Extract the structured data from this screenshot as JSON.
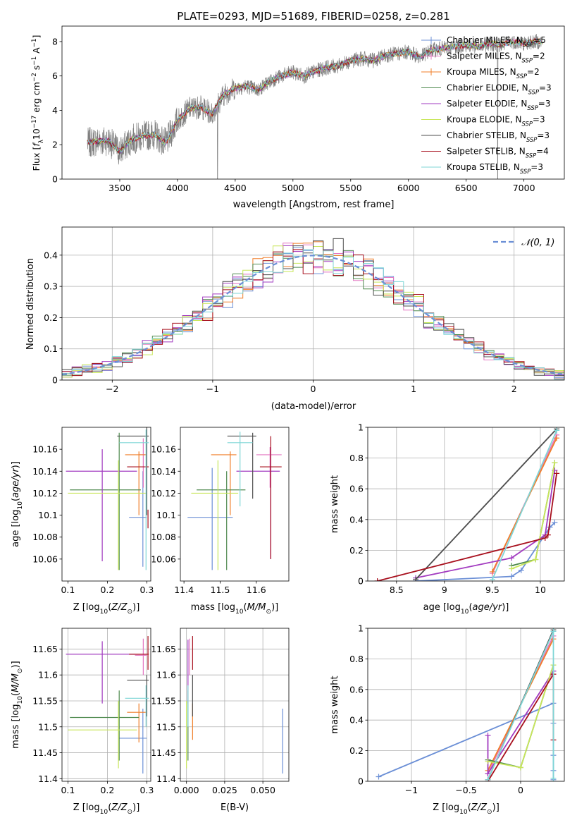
{
  "chart_data": [
    {
      "id": "spectrum",
      "type": "line",
      "title": "PLATE=0293, MJD=51689, FIBERID=0258, z=0.281",
      "xlabel": "wavelength [Angstrom, rest frame]",
      "ylabel": "Flux [f_λ 10^-17 erg cm^-2 s^-1 A^-1]",
      "xlim": [
        3000,
        7350
      ],
      "ylim": [
        0,
        8.9
      ],
      "xticks": [
        3500,
        4000,
        4500,
        5000,
        5500,
        6000,
        6500,
        7000
      ],
      "yticks": [
        0,
        2,
        4,
        6,
        8
      ],
      "grid": false,
      "legend_position": "right",
      "data_color": "#808080",
      "data_x_range": [
        3220,
        7160
      ],
      "model_curve": {
        "x": [
          3220,
          3300,
          3400,
          3500,
          3600,
          3700,
          3800,
          3900,
          4000,
          4100,
          4200,
          4300,
          4400,
          4500,
          4600,
          4700,
          4800,
          4900,
          5000,
          5100,
          5200,
          5300,
          5400,
          5500,
          5600,
          5700,
          5800,
          5900,
          6000,
          6100,
          6200,
          6300,
          6400,
          6500,
          6600,
          6700,
          6800,
          6900,
          7000,
          7100,
          7160
        ],
        "y": [
          2.1,
          2.2,
          2.25,
          1.6,
          2.3,
          2.5,
          2.6,
          2.1,
          3.4,
          4.1,
          4.2,
          3.8,
          4.9,
          5.3,
          5.4,
          5.2,
          5.7,
          6.0,
          6.2,
          6.0,
          6.3,
          6.5,
          6.6,
          6.9,
          7.0,
          6.9,
          7.2,
          7.3,
          7.4,
          7.1,
          7.5,
          7.6,
          7.7,
          7.8,
          7.7,
          7.9,
          7.8,
          8.0,
          7.9,
          8.0,
          8.0
        ]
      },
      "series": [
        {
          "name": "Chabrier MILES, N_SSP=5",
          "color": "#6b8fd6"
        },
        {
          "name": "Salpeter MILES, N_SSP=2",
          "color": "#e377c2"
        },
        {
          "name": "Kroupa MILES, N_SSP=2",
          "color": "#f07f2a"
        },
        {
          "name": "Chabrier ELODIE, N_SSP=3",
          "color": "#4f8a4f"
        },
        {
          "name": "Salpeter ELODIE, N_SSP=3",
          "color": "#a23bc0"
        },
        {
          "name": "Kroupa ELODIE, N_SSP=3",
          "color": "#c8e65a"
        },
        {
          "name": "Chabrier STELIB, N_SSP=3",
          "color": "#4d4d4d"
        },
        {
          "name": "Salpeter STELIB, N_SSP=4",
          "color": "#a8101e"
        },
        {
          "name": "Kroupa STELIB, N_SSP=3",
          "color": "#7fd6d6"
        }
      ]
    },
    {
      "id": "residuals",
      "type": "line",
      "xlabel": "(data-model)/error",
      "ylabel": "Normed distribution",
      "xlim": [
        -2.5,
        2.5
      ],
      "ylim": [
        0,
        0.49
      ],
      "xticks": [
        -2,
        -1,
        0,
        1,
        2
      ],
      "yticks": [
        0.0,
        0.1,
        0.2,
        0.3,
        0.4
      ],
      "grid": true,
      "legend_position": "top-right",
      "bin_width": 0.1,
      "gaussian": {
        "name": "𝒩(0, 1)",
        "color": "#6b8fd6",
        "style": "dashed"
      }
    },
    {
      "id": "age-vs-Z",
      "type": "scatter",
      "xlabel": "Z [log10(Z/Z⊙)]",
      "ylabel": "age  [log10(age/yr)]",
      "xlim": [
        0.085,
        0.31
      ],
      "ylim": [
        10.04,
        10.18
      ],
      "xticks": [
        0.1,
        0.2,
        0.3
      ],
      "yticks": [
        10.06,
        10.08,
        10.1,
        10.12,
        10.14,
        10.16
      ],
      "points": [
        {
          "color": "#6b8fd6",
          "x": 0.29,
          "y": 10.098,
          "xerr": [
            0.255,
            0.3
          ],
          "yerr": [
            10.053,
            10.14
          ]
        },
        {
          "color": "#e377c2",
          "x": 0.291,
          "y": 10.155,
          "xerr": [
            0.28,
            0.3
          ],
          "yerr": [
            10.125,
            10.17
          ]
        },
        {
          "color": "#f07f2a",
          "x": 0.28,
          "y": 10.155,
          "xerr": [
            0.245,
            0.3
          ],
          "yerr": [
            10.1,
            10.158
          ]
        },
        {
          "color": "#4f8a4f",
          "x": 0.23,
          "y": 10.123,
          "xerr": [
            0.105,
            0.285
          ],
          "yerr": [
            10.05,
            10.175
          ]
        },
        {
          "color": "#a23bc0",
          "x": 0.187,
          "y": 10.14,
          "xerr": [
            0.095,
            0.275
          ],
          "yerr": [
            10.058,
            10.16
          ]
        },
        {
          "color": "#c8e65a",
          "x": 0.228,
          "y": 10.12,
          "xerr": [
            0.1,
            0.3
          ],
          "yerr": [
            10.05,
            10.15
          ]
        },
        {
          "color": "#4d4d4d",
          "x": 0.3,
          "y": 10.172,
          "xerr": [
            0.225,
            0.305
          ],
          "yerr": [
            10.1,
            10.18
          ]
        },
        {
          "color": "#a8101e",
          "x": 0.303,
          "y": 10.144,
          "xerr": [
            0.25,
            0.305
          ],
          "yerr": [
            10.088,
            10.105
          ]
        },
        {
          "color": "#7fd6d6",
          "x": 0.298,
          "y": 10.166,
          "xerr": [
            0.23,
            0.305
          ],
          "yerr": [
            10.05,
            10.178
          ]
        }
      ]
    },
    {
      "id": "age-vs-mass",
      "type": "scatter",
      "xlabel": "mass [log10(M/M⊙)]",
      "ylabel": "",
      "xlim": [
        11.39,
        11.69
      ],
      "ylim": [
        10.04,
        10.18
      ],
      "xticks": [
        11.4,
        11.5,
        11.6
      ],
      "yticks": [
        10.06,
        10.08,
        10.1,
        10.12,
        10.14,
        10.16
      ],
      "points": [
        {
          "color": "#6b8fd6",
          "x": 11.478,
          "y": 10.098,
          "xerr": [
            11.41,
            11.535
          ],
          "yerr": [
            10.05,
            10.143
          ]
        },
        {
          "color": "#e377c2",
          "x": 11.638,
          "y": 10.155,
          "xerr": [
            11.6,
            11.67
          ],
          "yerr": [
            10.125,
            10.162
          ]
        },
        {
          "color": "#f07f2a",
          "x": 11.528,
          "y": 10.155,
          "xerr": [
            11.475,
            11.545
          ],
          "yerr": [
            10.1,
            10.158
          ]
        },
        {
          "color": "#4f8a4f",
          "x": 11.518,
          "y": 10.123,
          "xerr": [
            11.435,
            11.57
          ],
          "yerr": [
            10.05,
            10.14
          ]
        },
        {
          "color": "#a23bc0",
          "x": 11.64,
          "y": 10.14,
          "xerr": [
            11.545,
            11.665
          ],
          "yerr": [
            10.06,
            10.162
          ]
        },
        {
          "color": "#c8e65a",
          "x": 11.494,
          "y": 10.12,
          "xerr": [
            11.42,
            11.55
          ],
          "yerr": [
            10.05,
            10.15
          ]
        },
        {
          "color": "#4d4d4d",
          "x": 11.59,
          "y": 10.172,
          "xerr": [
            11.52,
            11.6
          ],
          "yerr": [
            10.115,
            10.175
          ]
        },
        {
          "color": "#a8101e",
          "x": 11.64,
          "y": 10.144,
          "xerr": [
            11.61,
            11.67
          ],
          "yerr": [
            10.06,
            10.172
          ]
        },
        {
          "color": "#7fd6d6",
          "x": 11.555,
          "y": 10.166,
          "xerr": [
            11.52,
            11.59
          ],
          "yerr": [
            10.108,
            10.176
          ]
        }
      ]
    },
    {
      "id": "weight-vs-age",
      "type": "line",
      "xlabel": "age  [log10(age/yr)]",
      "ylabel": "mass weight",
      "xlim": [
        8.2,
        10.25
      ],
      "ylim": [
        0.0,
        1.0
      ],
      "xticks": [
        8.5,
        9.0,
        9.5,
        10.0
      ],
      "yticks": [
        0.0,
        0.2,
        0.4,
        0.6,
        0.8,
        1.0
      ],
      "grid": true,
      "series": [
        {
          "color": "#6b8fd6",
          "x": [
            8.7,
            9.7,
            9.8,
            10.1,
            10.15
          ],
          "y": [
            0.0,
            0.03,
            0.07,
            0.35,
            0.38
          ]
        },
        {
          "color": "#e377c2",
          "x": [
            9.5,
            10.17
          ],
          "y": [
            0.05,
            0.95
          ]
        },
        {
          "color": "#f07f2a",
          "x": [
            9.5,
            10.17
          ],
          "y": [
            0.06,
            0.93
          ]
        },
        {
          "color": "#4f8a4f",
          "x": [
            9.7,
            9.95,
            10.15
          ],
          "y": [
            0.1,
            0.14,
            0.77
          ]
        },
        {
          "color": "#a23bc0",
          "x": [
            8.7,
            9.7,
            10.05,
            10.15
          ],
          "y": [
            0.02,
            0.15,
            0.3,
            0.72
          ]
        },
        {
          "color": "#c8e65a",
          "x": [
            9.7,
            9.95,
            10.15
          ],
          "y": [
            0.08,
            0.14,
            0.77
          ]
        },
        {
          "color": "#4d4d4d",
          "x": [
            8.7,
            10.17
          ],
          "y": [
            0.01,
            0.99
          ]
        },
        {
          "color": "#a8101e",
          "x": [
            8.3,
            10.05,
            10.08,
            10.17
          ],
          "y": [
            0.0,
            0.28,
            0.3,
            0.7
          ]
        },
        {
          "color": "#7fd6d6",
          "x": [
            9.5,
            10.17
          ],
          "y": [
            0.01,
            0.98
          ]
        }
      ]
    },
    {
      "id": "mass-vs-Z",
      "type": "scatter",
      "xlabel": "Z [log10(Z/Z⊙)]",
      "ylabel": "mass [log10(M/M⊙)]",
      "xlim": [
        0.085,
        0.31
      ],
      "ylim": [
        11.395,
        11.69
      ],
      "xticks": [
        0.1,
        0.2,
        0.3
      ],
      "yticks": [
        11.4,
        11.45,
        11.5,
        11.55,
        11.6,
        11.65
      ],
      "points": [
        {
          "color": "#6b8fd6",
          "x": 0.29,
          "y": 11.478,
          "xerr": [
            0.23,
            0.3
          ],
          "yerr": [
            11.41,
            11.535
          ]
        },
        {
          "color": "#e377c2",
          "x": 0.291,
          "y": 11.638,
          "xerr": [
            0.27,
            0.3
          ],
          "yerr": [
            11.6,
            11.67
          ]
        },
        {
          "color": "#f07f2a",
          "x": 0.28,
          "y": 11.528,
          "xerr": [
            0.25,
            0.3
          ],
          "yerr": [
            11.47,
            11.545
          ]
        },
        {
          "color": "#4f8a4f",
          "x": 0.23,
          "y": 11.518,
          "xerr": [
            0.105,
            0.28
          ],
          "yerr": [
            11.435,
            11.57
          ]
        },
        {
          "color": "#a23bc0",
          "x": 0.187,
          "y": 11.64,
          "xerr": [
            0.095,
            0.27
          ],
          "yerr": [
            11.545,
            11.665
          ]
        },
        {
          "color": "#c8e65a",
          "x": 0.228,
          "y": 11.494,
          "xerr": [
            0.1,
            0.275
          ],
          "yerr": [
            11.42,
            11.55
          ]
        },
        {
          "color": "#4d4d4d",
          "x": 0.3,
          "y": 11.59,
          "xerr": [
            0.25,
            0.305
          ],
          "yerr": [
            11.52,
            11.6
          ]
        },
        {
          "color": "#a8101e",
          "x": 0.303,
          "y": 11.64,
          "xerr": [
            0.255,
            0.305
          ],
          "yerr": [
            11.61,
            11.675
          ]
        },
        {
          "color": "#7fd6d6",
          "x": 0.298,
          "y": 11.555,
          "xerr": [
            0.245,
            0.305
          ],
          "yerr": [
            11.5,
            11.58
          ]
        }
      ]
    },
    {
      "id": "mass-vs-ebv",
      "type": "scatter",
      "xlabel": "E(B-V)",
      "ylabel": "",
      "xlim": [
        -0.004,
        0.067
      ],
      "ylim": [
        11.395,
        11.69
      ],
      "xticks": [
        0.0,
        0.025,
        0.05
      ],
      "yticks": [
        11.4,
        11.45,
        11.5,
        11.55,
        11.6,
        11.65
      ],
      "points": [
        {
          "color": "#6b8fd6",
          "x": 0.063,
          "y": 11.478,
          "yerr": [
            11.41,
            11.535
          ]
        },
        {
          "color": "#e377c2",
          "x": 0.002,
          "y": 11.638,
          "yerr": [
            11.6,
            11.67
          ]
        },
        {
          "color": "#f07f2a",
          "x": 0.004,
          "y": 11.528,
          "yerr": [
            11.475,
            11.545
          ]
        },
        {
          "color": "#4f8a4f",
          "x": 0.001,
          "y": 11.518,
          "yerr": [
            11.435,
            11.57
          ]
        },
        {
          "color": "#a23bc0",
          "x": 0.001,
          "y": 11.64,
          "yerr": [
            11.545,
            11.668
          ]
        },
        {
          "color": "#c8e65a",
          "x": 0.0,
          "y": 11.494,
          "yerr": [
            11.42,
            11.55
          ]
        },
        {
          "color": "#4d4d4d",
          "x": 0.004,
          "y": 11.59,
          "yerr": [
            11.52,
            11.6
          ]
        },
        {
          "color": "#a8101e",
          "x": 0.004,
          "y": 11.64,
          "yerr": [
            11.61,
            11.675
          ]
        },
        {
          "color": "#7fd6d6",
          "x": 0.001,
          "y": 11.555,
          "yerr": [
            11.5,
            11.58
          ]
        }
      ]
    },
    {
      "id": "weight-vs-Z",
      "type": "line",
      "xlabel": "Z [log10(Z/Z⊙)]",
      "ylabel": "mass weight",
      "xlim": [
        -1.4,
        0.4
      ],
      "ylim": [
        0.0,
        1.0
      ],
      "xticks": [
        -1.0,
        -0.5,
        0.0
      ],
      "yticks": [
        0.0,
        0.2,
        0.4,
        0.6,
        0.8,
        1.0
      ],
      "grid": true,
      "series": [
        {
          "color": "#6b8fd6",
          "x": [
            -1.3,
            0.3,
            0.3,
            0.3,
            0.3,
            0.3
          ],
          "y": [
            0.03,
            0.51,
            0.38,
            0.17,
            0.07,
            0.01
          ]
        },
        {
          "color": "#e377c2",
          "x": [
            -0.3,
            0.3
          ],
          "y": [
            0.05,
            0.95
          ]
        },
        {
          "color": "#f07f2a",
          "x": [
            -0.3,
            0.3
          ],
          "y": [
            0.07,
            0.93
          ]
        },
        {
          "color": "#4f8a4f",
          "x": [
            -0.3,
            0.0,
            0.3
          ],
          "y": [
            0.14,
            0.09,
            0.76
          ]
        },
        {
          "color": "#a23bc0",
          "x": [
            -0.3,
            -0.3,
            0.3
          ],
          "y": [
            0.3,
            0.05,
            0.72
          ]
        },
        {
          "color": "#c8e65a",
          "x": [
            -0.3,
            0.0,
            0.3
          ],
          "y": [
            0.13,
            0.09,
            0.76
          ]
        },
        {
          "color": "#4d4d4d",
          "x": [
            -0.3,
            0.3
          ],
          "y": [
            0.01,
            0.99
          ]
        },
        {
          "color": "#a8101e",
          "x": [
            -0.3,
            0.3,
            0.3
          ],
          "y": [
            0.0,
            0.7,
            0.27
          ]
        },
        {
          "color": "#7fd6d6",
          "x": [
            -0.3,
            0.3,
            0.3
          ],
          "y": [
            0.01,
            0.98,
            0.02
          ]
        }
      ]
    }
  ]
}
